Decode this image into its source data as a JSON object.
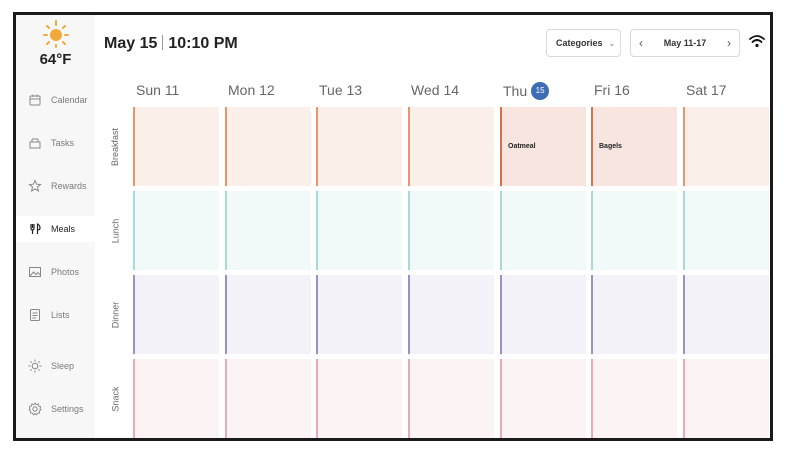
{
  "weather": {
    "icon": "sun-icon",
    "temp": "64°F"
  },
  "nav": [
    {
      "label": "Calendar",
      "icon": "calendar-icon"
    },
    {
      "label": "Tasks",
      "icon": "tasks-icon"
    },
    {
      "label": "Rewards",
      "icon": "rewards-icon"
    },
    {
      "label": "Meals",
      "icon": "meals-icon",
      "active": true
    },
    {
      "label": "Photos",
      "icon": "photos-icon"
    },
    {
      "label": "Lists",
      "icon": "lists-icon"
    },
    {
      "label": "Sleep",
      "icon": "sleep-icon"
    },
    {
      "label": "Settings",
      "icon": "settings-icon"
    }
  ],
  "header": {
    "date": "May 15",
    "time": "10:10 PM",
    "categories_label": "Categories",
    "week_range": "May 11-17"
  },
  "days": [
    {
      "name": "Sun",
      "num": "11"
    },
    {
      "name": "Mon",
      "num": "12"
    },
    {
      "name": "Tue",
      "num": "13"
    },
    {
      "name": "Wed",
      "num": "14"
    },
    {
      "name": "Thu",
      "num": "15",
      "today": true
    },
    {
      "name": "Fri",
      "num": "16"
    },
    {
      "name": "Sat",
      "num": "17"
    }
  ],
  "meals": [
    {
      "label": "Breakfast",
      "entries": [
        "",
        "",
        "",
        "",
        "Oatmeal",
        "Bagels",
        ""
      ]
    },
    {
      "label": "Lunch",
      "entries": [
        "",
        "",
        "",
        "",
        "",
        "",
        ""
      ]
    },
    {
      "label": "Dinner",
      "entries": [
        "",
        "",
        "",
        "",
        "",
        "",
        ""
      ]
    },
    {
      "label": "Snack",
      "entries": [
        "",
        "",
        "",
        "",
        "",
        "",
        ""
      ]
    }
  ],
  "colors": {
    "breakfast_bg": "#fbefea",
    "breakfast_bar": "#e8946c",
    "breakfast_filled_bg": "#f9e5df",
    "breakfast_filled_bar": "#d4734a",
    "lunch_bg": "#f1f9f9",
    "lunch_bar": "#a6dad4",
    "dinner_bg": "#f3f2f8",
    "dinner_bar": "#a08ec6",
    "snack_bg": "#fcf3f5",
    "snack_bar": "#eaa9bb",
    "today": "#3b6cb5"
  }
}
